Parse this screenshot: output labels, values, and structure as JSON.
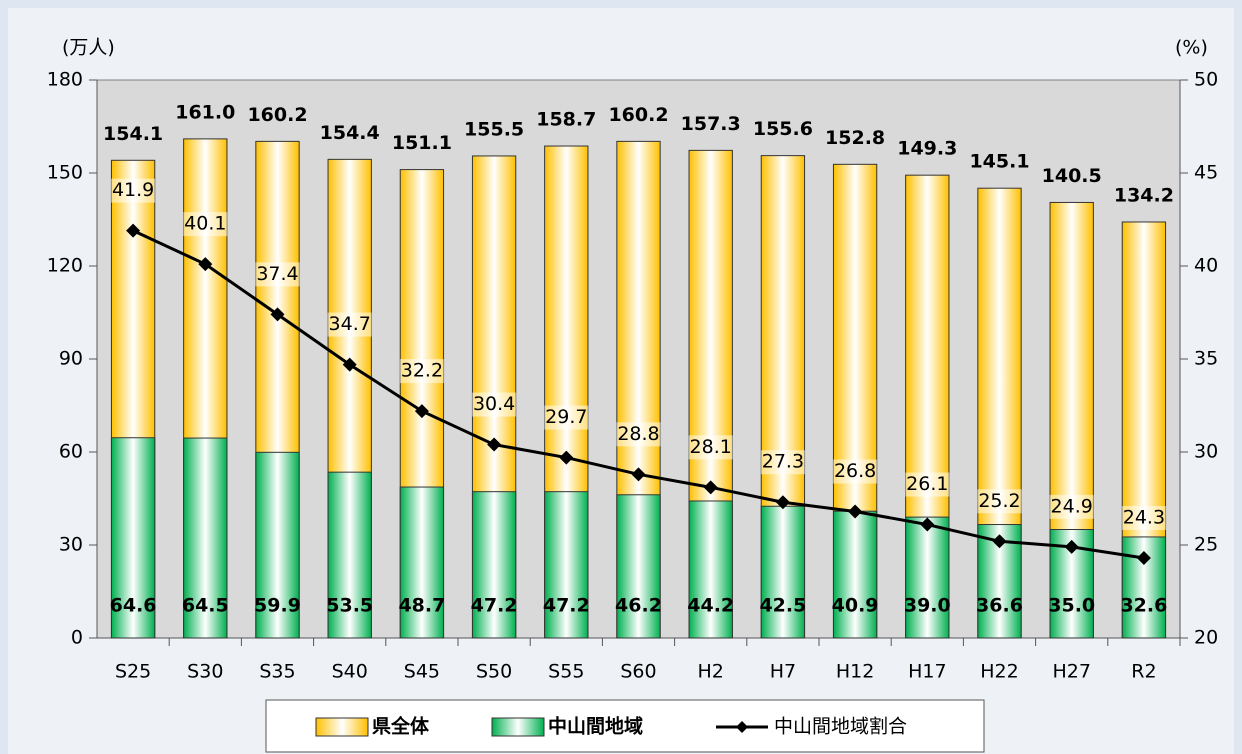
{
  "chart_data": {
    "type": "bar_line",
    "y_label": "(万人)",
    "y2_label": "(%)",
    "categories": [
      "S25",
      "S30",
      "S35",
      "S40",
      "S45",
      "S50",
      "S55",
      "S60",
      "H2",
      "H7",
      "H12",
      "H17",
      "H22",
      "H27",
      "R2"
    ],
    "series": [
      {
        "name": "県全体",
        "color": "#ffc000",
        "type": "bar",
        "values": [
          154.1,
          161.0,
          160.2,
          154.4,
          151.1,
          155.5,
          158.7,
          160.2,
          157.3,
          155.6,
          152.8,
          149.3,
          145.1,
          140.5,
          134.2
        ],
        "value_labels": [
          "154.1",
          "161.0",
          "160.2",
          "154.4",
          "151.1",
          "155.5",
          "158.7",
          "160.2",
          "157.3",
          "155.6",
          "152.8",
          "149.3",
          "145.1",
          "140.5",
          "134.2"
        ]
      },
      {
        "name": "中山間地域",
        "color": "#00b050",
        "type": "bar",
        "values": [
          64.6,
          64.5,
          59.9,
          53.5,
          48.7,
          47.2,
          47.2,
          46.2,
          44.2,
          42.5,
          40.9,
          39.0,
          36.6,
          35.0,
          32.6
        ],
        "value_labels": [
          "64.6",
          "64.5",
          "59.9",
          "53.5",
          "48.7",
          "47.2",
          "47.2",
          "46.2",
          "44.2",
          "42.5",
          "40.9",
          "39.0",
          "36.6",
          "35.0",
          "32.6"
        ]
      },
      {
        "name": "中山間地域割合",
        "color": "#000000",
        "type": "line",
        "axis": "y2",
        "values": [
          41.9,
          40.1,
          37.4,
          34.7,
          32.2,
          30.4,
          29.7,
          28.8,
          28.1,
          27.3,
          26.8,
          26.1,
          25.2,
          24.9,
          24.3
        ]
      }
    ],
    "ylim": [
      0,
      180
    ],
    "yticks": [
      0,
      30,
      60,
      90,
      120,
      150,
      180
    ],
    "y2lim": [
      20,
      50
    ],
    "y2ticks": [
      20,
      25,
      30,
      35,
      40,
      45,
      50
    ],
    "grid": false
  }
}
